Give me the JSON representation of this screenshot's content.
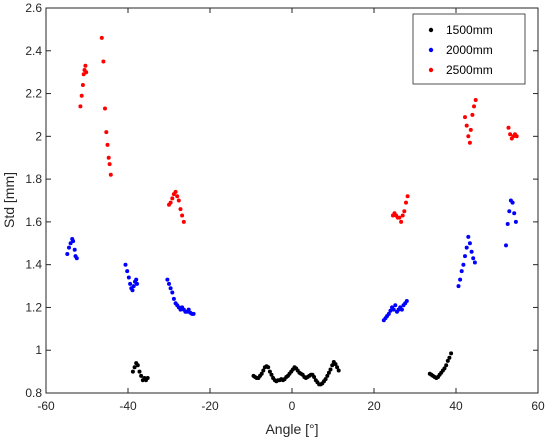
{
  "chart_data": {
    "type": "scatter",
    "title": "",
    "xlabel": "Angle [°]",
    "ylabel": "Std [mm]",
    "xlim": [
      -60,
      60
    ],
    "ylim": [
      0.8,
      2.6
    ],
    "xticks": [
      -60,
      -40,
      -20,
      0,
      20,
      40,
      60
    ],
    "yticks": [
      0.8,
      1,
      1.2,
      1.4,
      1.6,
      1.8,
      2,
      2.2,
      2.4,
      2.6
    ],
    "grid": false,
    "legend_position": "top-right",
    "series": [
      {
        "name": "1500mm",
        "color": "#000000",
        "points": [
          [
            -38.8,
            0.9
          ],
          [
            -38.4,
            0.92
          ],
          [
            -38.0,
            0.94
          ],
          [
            -37.6,
            0.93
          ],
          [
            -37.2,
            0.9
          ],
          [
            -36.8,
            0.88
          ],
          [
            -36.4,
            0.86
          ],
          [
            -36.0,
            0.87
          ],
          [
            -35.6,
            0.86
          ],
          [
            -35.2,
            0.87
          ],
          [
            -9.4,
            0.88
          ],
          [
            -9.0,
            0.875
          ],
          [
            -8.6,
            0.87
          ],
          [
            -8.2,
            0.87
          ],
          [
            -7.8,
            0.88
          ],
          [
            -7.4,
            0.89
          ],
          [
            -7.0,
            0.905
          ],
          [
            -6.6,
            0.92
          ],
          [
            -6.2,
            0.925
          ],
          [
            -5.8,
            0.92
          ],
          [
            -5.4,
            0.9
          ],
          [
            -5.0,
            0.885
          ],
          [
            -4.6,
            0.87
          ],
          [
            -4.2,
            0.86
          ],
          [
            -3.8,
            0.855
          ],
          [
            -3.4,
            0.86
          ],
          [
            -3.0,
            0.86
          ],
          [
            -2.6,
            0.865
          ],
          [
            -2.2,
            0.86
          ],
          [
            -1.8,
            0.865
          ],
          [
            -1.4,
            0.875
          ],
          [
            -1.0,
            0.88
          ],
          [
            -0.6,
            0.89
          ],
          [
            -0.2,
            0.9
          ],
          [
            0.2,
            0.91
          ],
          [
            0.6,
            0.92
          ],
          [
            1.0,
            0.915
          ],
          [
            1.4,
            0.905
          ],
          [
            1.8,
            0.895
          ],
          [
            2.2,
            0.89
          ],
          [
            2.6,
            0.885
          ],
          [
            3.0,
            0.875
          ],
          [
            3.4,
            0.87
          ],
          [
            3.8,
            0.875
          ],
          [
            4.2,
            0.88
          ],
          [
            4.6,
            0.885
          ],
          [
            5.0,
            0.885
          ],
          [
            5.4,
            0.875
          ],
          [
            5.8,
            0.86
          ],
          [
            6.2,
            0.85
          ],
          [
            6.6,
            0.84
          ],
          [
            7.0,
            0.84
          ],
          [
            7.4,
            0.845
          ],
          [
            7.8,
            0.855
          ],
          [
            8.2,
            0.865
          ],
          [
            8.6,
            0.88
          ],
          [
            9.0,
            0.895
          ],
          [
            9.4,
            0.91
          ],
          [
            9.8,
            0.93
          ],
          [
            10.2,
            0.945
          ],
          [
            10.6,
            0.935
          ],
          [
            11.0,
            0.92
          ],
          [
            11.4,
            0.905
          ],
          [
            33.6,
            0.89
          ],
          [
            34.0,
            0.885
          ],
          [
            34.4,
            0.88
          ],
          [
            34.8,
            0.875
          ],
          [
            35.2,
            0.87
          ],
          [
            35.6,
            0.875
          ],
          [
            36.0,
            0.885
          ],
          [
            36.4,
            0.895
          ],
          [
            36.8,
            0.905
          ],
          [
            37.2,
            0.915
          ],
          [
            37.6,
            0.93
          ],
          [
            38.0,
            0.95
          ],
          [
            38.4,
            0.965
          ],
          [
            38.8,
            0.985
          ]
        ]
      },
      {
        "name": "2000mm",
        "color": "#0000ff",
        "points": [
          [
            -54.8,
            1.45
          ],
          [
            -54.4,
            1.48
          ],
          [
            -54.0,
            1.5
          ],
          [
            -53.6,
            1.52
          ],
          [
            -53.4,
            1.51
          ],
          [
            -53.0,
            1.47
          ],
          [
            -52.8,
            1.44
          ],
          [
            -52.5,
            1.43
          ],
          [
            -40.6,
            1.4
          ],
          [
            -40.2,
            1.37
          ],
          [
            -39.8,
            1.34
          ],
          [
            -39.5,
            1.31
          ],
          [
            -39.2,
            1.29
          ],
          [
            -38.9,
            1.28
          ],
          [
            -38.6,
            1.3
          ],
          [
            -38.3,
            1.32
          ],
          [
            -38.0,
            1.33
          ],
          [
            -37.8,
            1.31
          ],
          [
            -30.4,
            1.33
          ],
          [
            -30.0,
            1.31
          ],
          [
            -29.6,
            1.29
          ],
          [
            -29.2,
            1.27
          ],
          [
            -28.8,
            1.24
          ],
          [
            -28.4,
            1.22
          ],
          [
            -28.0,
            1.21
          ],
          [
            -27.6,
            1.2
          ],
          [
            -27.2,
            1.19
          ],
          [
            -26.8,
            1.2
          ],
          [
            -26.4,
            1.19
          ],
          [
            -26.0,
            1.18
          ],
          [
            -25.6,
            1.18
          ],
          [
            -25.2,
            1.19
          ],
          [
            -24.8,
            1.175
          ],
          [
            -24.4,
            1.17
          ],
          [
            -24.0,
            1.17
          ],
          [
            22.4,
            1.14
          ],
          [
            22.8,
            1.15
          ],
          [
            23.2,
            1.16
          ],
          [
            23.6,
            1.17
          ],
          [
            24.0,
            1.185
          ],
          [
            24.4,
            1.2
          ],
          [
            24.8,
            1.19
          ],
          [
            25.2,
            1.21
          ],
          [
            25.6,
            1.18
          ],
          [
            26.0,
            1.19
          ],
          [
            26.4,
            1.2
          ],
          [
            26.8,
            1.19
          ],
          [
            27.2,
            1.21
          ],
          [
            27.6,
            1.22
          ],
          [
            28.0,
            1.23
          ],
          [
            40.6,
            1.3
          ],
          [
            41.0,
            1.33
          ],
          [
            41.4,
            1.37
          ],
          [
            41.8,
            1.4
          ],
          [
            42.2,
            1.44
          ],
          [
            42.6,
            1.48
          ],
          [
            43.0,
            1.53
          ],
          [
            43.4,
            1.5
          ],
          [
            43.8,
            1.46
          ],
          [
            44.2,
            1.43
          ],
          [
            44.6,
            1.41
          ],
          [
            52.2,
            1.49
          ],
          [
            52.6,
            1.59
          ],
          [
            53.0,
            1.65
          ],
          [
            53.4,
            1.7
          ],
          [
            53.8,
            1.69
          ],
          [
            54.2,
            1.64
          ],
          [
            54.6,
            1.6
          ]
        ]
      },
      {
        "name": "2500mm",
        "color": "#ff0000",
        "points": [
          [
            -51.6,
            2.14
          ],
          [
            -51.3,
            2.19
          ],
          [
            -51.0,
            2.24
          ],
          [
            -50.8,
            2.29
          ],
          [
            -50.6,
            2.31
          ],
          [
            -50.4,
            2.33
          ],
          [
            -50.2,
            2.3
          ],
          [
            -46.4,
            2.46
          ],
          [
            -46.0,
            2.35
          ],
          [
            -45.6,
            2.13
          ],
          [
            -45.3,
            2.02
          ],
          [
            -45.0,
            1.96
          ],
          [
            -44.7,
            1.9
          ],
          [
            -44.5,
            1.87
          ],
          [
            -44.2,
            1.82
          ],
          [
            -30.0,
            1.68
          ],
          [
            -29.6,
            1.69
          ],
          [
            -29.2,
            1.71
          ],
          [
            -28.8,
            1.73
          ],
          [
            -28.4,
            1.74
          ],
          [
            -28.0,
            1.72
          ],
          [
            -27.6,
            1.7
          ],
          [
            -27.2,
            1.66
          ],
          [
            -26.8,
            1.63
          ],
          [
            -26.4,
            1.6
          ],
          [
            24.6,
            1.63
          ],
          [
            25.0,
            1.64
          ],
          [
            25.4,
            1.63
          ],
          [
            25.8,
            1.62
          ],
          [
            26.2,
            1.62
          ],
          [
            26.6,
            1.6
          ],
          [
            27.0,
            1.63
          ],
          [
            27.4,
            1.65
          ],
          [
            27.8,
            1.69
          ],
          [
            28.2,
            1.72
          ],
          [
            42.2,
            2.09
          ],
          [
            42.6,
            2.05
          ],
          [
            43.0,
            2.0
          ],
          [
            43.4,
            1.97
          ],
          [
            43.6,
            2.03
          ],
          [
            44.0,
            2.1
          ],
          [
            44.4,
            2.14
          ],
          [
            44.8,
            2.17
          ],
          [
            52.8,
            2.04
          ],
          [
            53.2,
            2.01
          ],
          [
            53.6,
            1.99
          ],
          [
            54.0,
            2.0
          ],
          [
            54.4,
            2.01
          ],
          [
            54.8,
            2.0
          ]
        ]
      }
    ]
  }
}
